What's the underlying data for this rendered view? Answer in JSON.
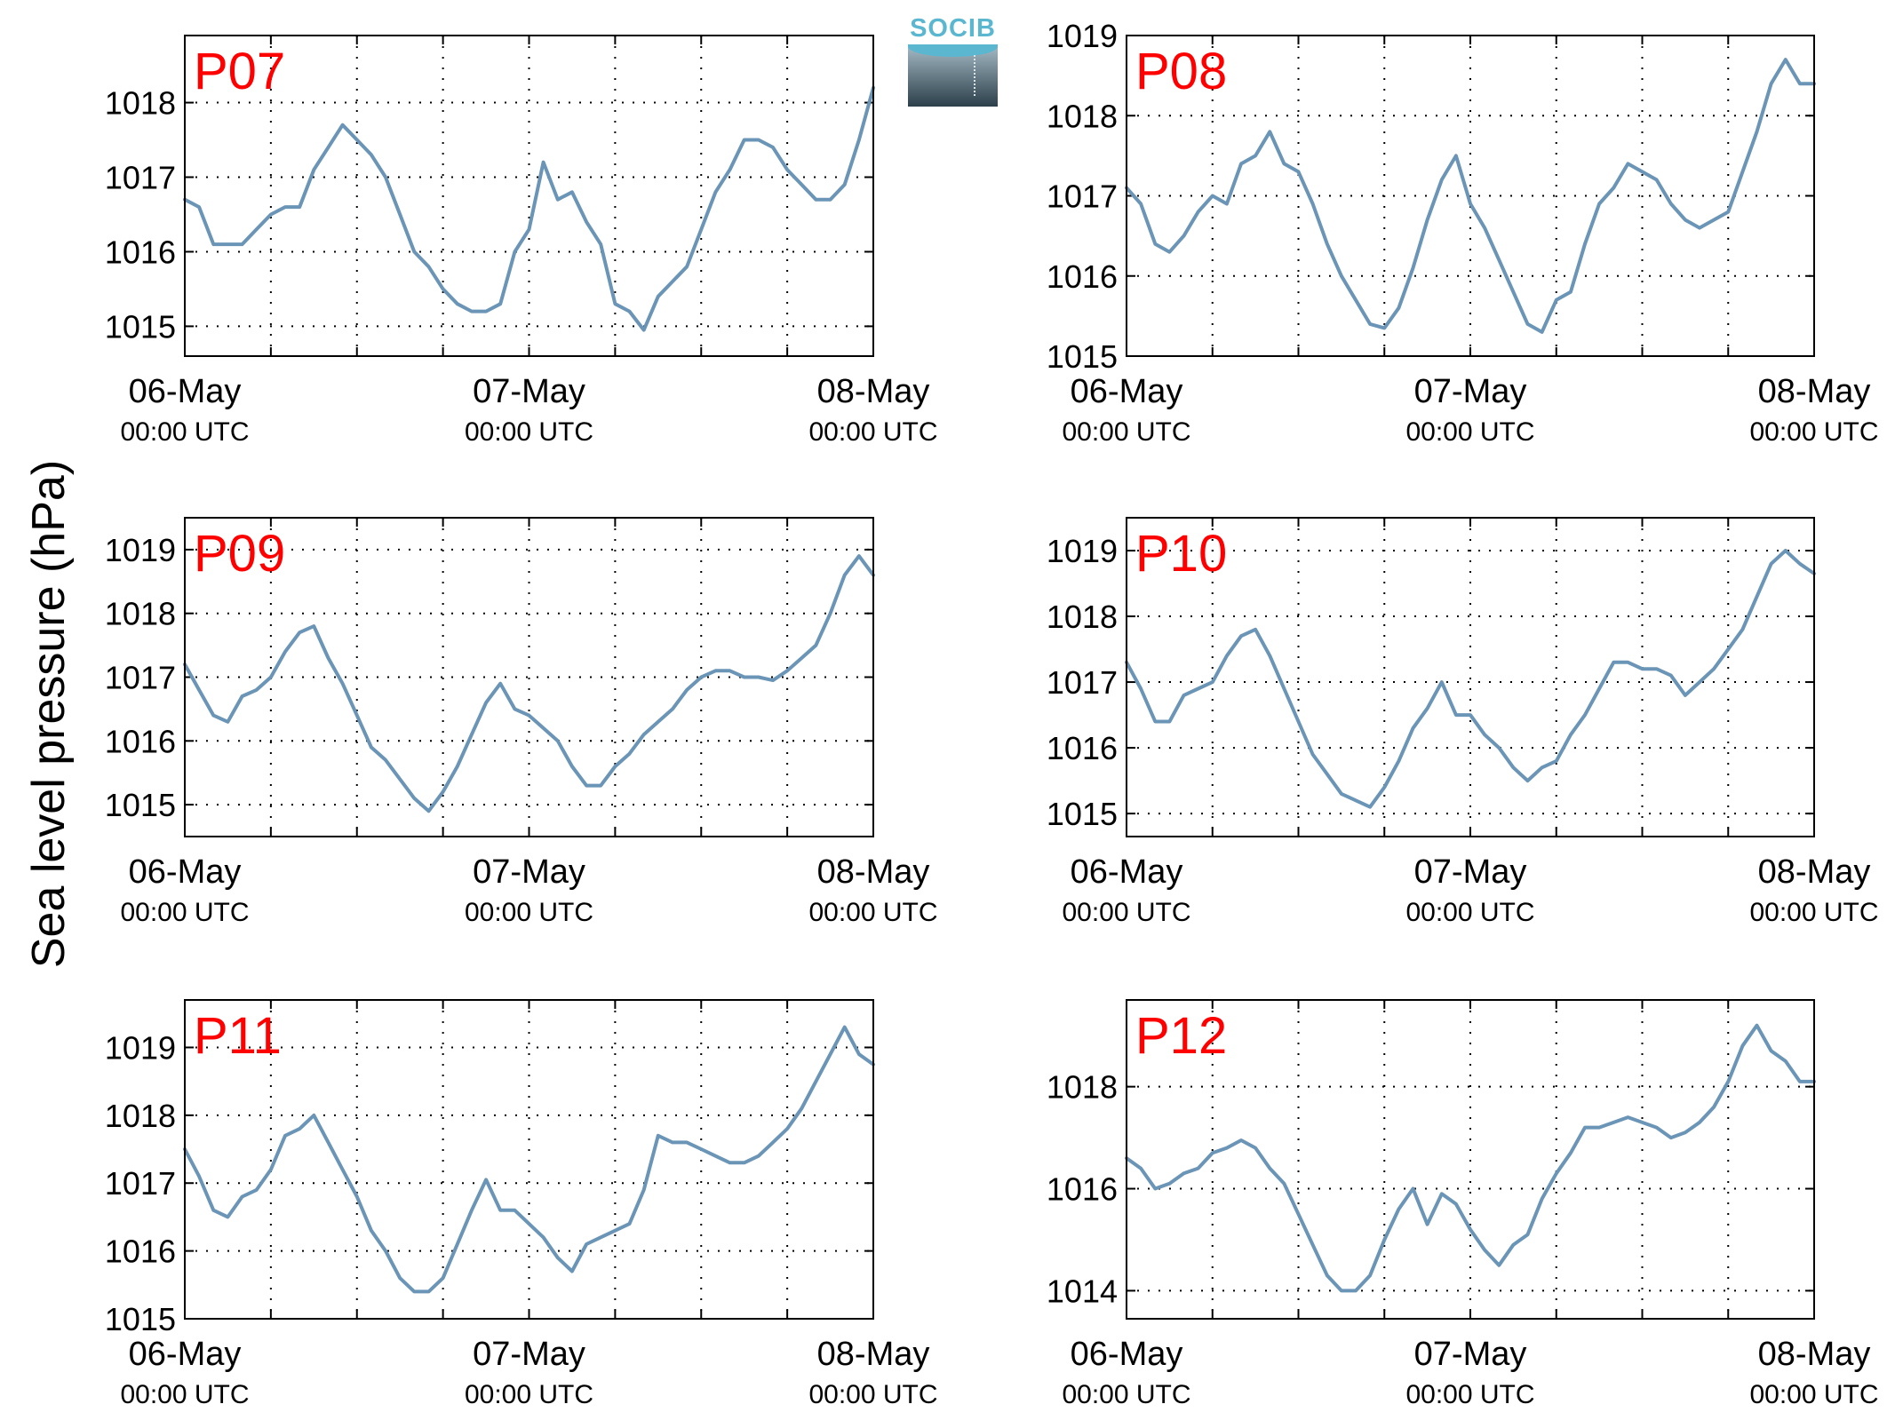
{
  "figure": {
    "ylabel": "Sea level pressure (hPa)",
    "logo_text": "SOCIB"
  },
  "colors": {
    "line": "#6b95b6",
    "panel_label": "#ff0000",
    "grid": "#000000"
  },
  "chart_data": [
    {
      "type": "line",
      "title": "P07",
      "x_range": [
        "2016-05-06 00:00",
        "2016-05-08 00:00"
      ],
      "x_ticks": [
        {
          "major": "06-May",
          "minor": "00:00 UTC"
        },
        {
          "major": "07-May",
          "minor": "00:00 UTC"
        },
        {
          "major": "08-May",
          "minor": "00:00 UTC"
        }
      ],
      "ylim": [
        1014.6,
        1018.9
      ],
      "y_ticks": [
        1015,
        1016,
        1017,
        1018
      ],
      "grid": true,
      "series": [
        {
          "x_hours": [
            0,
            1,
            2,
            3,
            4,
            5,
            6,
            7,
            8,
            9,
            10,
            11,
            12,
            13,
            14,
            15,
            16,
            17,
            18,
            19,
            20,
            21,
            22,
            23,
            24,
            25,
            26,
            27,
            28,
            29,
            30,
            31,
            32,
            33,
            34,
            35,
            36,
            37,
            38,
            39,
            40,
            41,
            42,
            43,
            44,
            45,
            46,
            47,
            48
          ],
          "values": [
            1016.7,
            1016.6,
            1016.1,
            1016.1,
            1016.1,
            1016.3,
            1016.5,
            1016.6,
            1016.6,
            1017.1,
            1017.4,
            1017.7,
            1017.5,
            1017.3,
            1017.0,
            1016.5,
            1016.0,
            1015.8,
            1015.5,
            1015.3,
            1015.2,
            1015.2,
            1015.3,
            1016.0,
            1016.3,
            1017.2,
            1016.7,
            1016.8,
            1016.4,
            1016.1,
            1015.3,
            1015.2,
            1014.95,
            1015.4,
            1015.6,
            1015.8,
            1016.3,
            1016.8,
            1017.1,
            1017.5,
            1017.5,
            1017.4,
            1017.1,
            1016.9,
            1016.7,
            1016.7,
            1016.9,
            1017.5,
            1018.2
          ]
        }
      ]
    },
    {
      "type": "line",
      "title": "P08",
      "x_range": [
        "2016-05-06 00:00",
        "2016-05-08 00:00"
      ],
      "x_ticks": [
        {
          "major": "06-May",
          "minor": "00:00 UTC"
        },
        {
          "major": "07-May",
          "minor": "00:00 UTC"
        },
        {
          "major": "08-May",
          "minor": "00:00 UTC"
        }
      ],
      "ylim": [
        1015,
        1019
      ],
      "y_ticks": [
        1015,
        1016,
        1017,
        1018,
        1019
      ],
      "grid": true,
      "series": [
        {
          "x_hours": [
            0,
            1,
            2,
            3,
            4,
            5,
            6,
            7,
            8,
            9,
            10,
            11,
            12,
            13,
            14,
            15,
            16,
            17,
            18,
            19,
            20,
            21,
            22,
            23,
            24,
            25,
            26,
            27,
            28,
            29,
            30,
            31,
            32,
            33,
            34,
            35,
            36,
            37,
            38,
            39,
            40,
            41,
            42,
            43,
            44,
            45,
            46,
            47,
            48
          ],
          "values": [
            1017.1,
            1016.9,
            1016.4,
            1016.3,
            1016.5,
            1016.8,
            1017.0,
            1016.9,
            1017.4,
            1017.5,
            1017.8,
            1017.4,
            1017.3,
            1016.9,
            1016.4,
            1016.0,
            1015.7,
            1015.4,
            1015.35,
            1015.6,
            1016.1,
            1016.7,
            1017.2,
            1017.5,
            1016.9,
            1016.6,
            1016.2,
            1015.8,
            1015.4,
            1015.3,
            1015.7,
            1015.8,
            1016.4,
            1016.9,
            1017.1,
            1017.4,
            1017.3,
            1017.2,
            1016.9,
            1016.7,
            1016.6,
            1016.7,
            1016.8,
            1017.3,
            1017.8,
            1018.4,
            1018.7,
            1018.4,
            1018.4
          ]
        }
      ]
    },
    {
      "type": "line",
      "title": "P09",
      "x_range": [
        "2016-05-06 00:00",
        "2016-05-08 00:00"
      ],
      "x_ticks": [
        {
          "major": "06-May",
          "minor": "00:00 UTC"
        },
        {
          "major": "07-May",
          "minor": "00:00 UTC"
        },
        {
          "major": "08-May",
          "minor": "00:00 UTC"
        }
      ],
      "ylim": [
        1014.5,
        1019.5
      ],
      "y_ticks": [
        1015,
        1016,
        1017,
        1018,
        1019
      ],
      "grid": true,
      "series": [
        {
          "x_hours": [
            0,
            1,
            2,
            3,
            4,
            5,
            6,
            7,
            8,
            9,
            10,
            11,
            12,
            13,
            14,
            15,
            16,
            17,
            18,
            19,
            20,
            21,
            22,
            23,
            24,
            25,
            26,
            27,
            28,
            29,
            30,
            31,
            32,
            33,
            34,
            35,
            36,
            37,
            38,
            39,
            40,
            41,
            42,
            43,
            44,
            45,
            46,
            47,
            48
          ],
          "values": [
            1017.2,
            1016.8,
            1016.4,
            1016.3,
            1016.7,
            1016.8,
            1017.0,
            1017.4,
            1017.7,
            1017.8,
            1017.3,
            1016.9,
            1016.4,
            1015.9,
            1015.7,
            1015.4,
            1015.1,
            1014.9,
            1015.2,
            1015.6,
            1016.1,
            1016.6,
            1016.9,
            1016.5,
            1016.4,
            1016.2,
            1016.0,
            1015.6,
            1015.3,
            1015.3,
            1015.6,
            1015.8,
            1016.1,
            1016.3,
            1016.5,
            1016.8,
            1017.0,
            1017.1,
            1017.1,
            1017.0,
            1017.0,
            1016.95,
            1017.1,
            1017.3,
            1017.5,
            1018.0,
            1018.6,
            1018.9,
            1018.6
          ]
        }
      ]
    },
    {
      "type": "line",
      "title": "P10",
      "x_range": [
        "2016-05-06 00:00",
        "2016-05-08 00:00"
      ],
      "x_ticks": [
        {
          "major": "06-May",
          "minor": "00:00 UTC"
        },
        {
          "major": "07-May",
          "minor": "00:00 UTC"
        },
        {
          "major": "08-May",
          "minor": "00:00 UTC"
        }
      ],
      "ylim": [
        1014.65,
        1019.5
      ],
      "y_ticks": [
        1015,
        1016,
        1017,
        1018,
        1019
      ],
      "grid": true,
      "series": [
        {
          "x_hours": [
            0,
            1,
            2,
            3,
            4,
            5,
            6,
            7,
            8,
            9,
            10,
            11,
            12,
            13,
            14,
            15,
            16,
            17,
            18,
            19,
            20,
            21,
            22,
            23,
            24,
            25,
            26,
            27,
            28,
            29,
            30,
            31,
            32,
            33,
            34,
            35,
            36,
            37,
            38,
            39,
            40,
            41,
            42,
            43,
            44,
            45,
            46,
            47,
            48
          ],
          "values": [
            1017.3,
            1016.9,
            1016.4,
            1016.4,
            1016.8,
            1016.9,
            1017.0,
            1017.4,
            1017.7,
            1017.8,
            1017.4,
            1016.9,
            1016.4,
            1015.9,
            1015.6,
            1015.3,
            1015.2,
            1015.1,
            1015.4,
            1015.8,
            1016.3,
            1016.6,
            1017.0,
            1016.5,
            1016.5,
            1016.2,
            1016.0,
            1015.7,
            1015.5,
            1015.7,
            1015.8,
            1016.2,
            1016.5,
            1016.9,
            1017.3,
            1017.3,
            1017.2,
            1017.2,
            1017.1,
            1016.8,
            1017.0,
            1017.2,
            1017.5,
            1017.8,
            1018.3,
            1018.8,
            1019.0,
            1018.8,
            1018.65
          ]
        }
      ]
    },
    {
      "type": "line",
      "title": "P11",
      "x_range": [
        "2016-05-06 00:00",
        "2016-05-08 00:00"
      ],
      "x_ticks": [
        {
          "major": "06-May",
          "minor": "00:00 UTC"
        },
        {
          "major": "07-May",
          "minor": "00:00 UTC"
        },
        {
          "major": "08-May",
          "minor": "00:00 UTC"
        }
      ],
      "ylim": [
        1015,
        1019.7
      ],
      "y_ticks": [
        1015,
        1016,
        1017,
        1018,
        1019
      ],
      "grid": true,
      "series": [
        {
          "x_hours": [
            0,
            1,
            2,
            3,
            4,
            5,
            6,
            7,
            8,
            9,
            10,
            11,
            12,
            13,
            14,
            15,
            16,
            17,
            18,
            19,
            20,
            21,
            22,
            23,
            24,
            25,
            26,
            27,
            28,
            29,
            30,
            31,
            32,
            33,
            34,
            35,
            36,
            37,
            38,
            39,
            40,
            41,
            42,
            43,
            44,
            45,
            46,
            47,
            48
          ],
          "values": [
            1017.5,
            1017.1,
            1016.6,
            1016.5,
            1016.8,
            1016.9,
            1017.2,
            1017.7,
            1017.8,
            1018.0,
            1017.6,
            1017.2,
            1016.8,
            1016.3,
            1016.0,
            1015.6,
            1015.4,
            1015.4,
            1015.6,
            1016.1,
            1016.6,
            1017.05,
            1016.6,
            1016.6,
            1016.4,
            1016.2,
            1015.9,
            1015.7,
            1016.1,
            1016.2,
            1016.3,
            1016.4,
            1016.9,
            1017.7,
            1017.6,
            1017.6,
            1017.5,
            1017.4,
            1017.3,
            1017.3,
            1017.4,
            1017.6,
            1017.8,
            1018.1,
            1018.5,
            1018.9,
            1019.3,
            1018.9,
            1018.75
          ]
        }
      ]
    },
    {
      "type": "line",
      "title": "P12",
      "x_range": [
        "2016-05-06 00:00",
        "2016-05-08 00:00"
      ],
      "x_ticks": [
        {
          "major": "06-May",
          "minor": "00:00 UTC"
        },
        {
          "major": "07-May",
          "minor": "00:00 UTC"
        },
        {
          "major": "08-May",
          "minor": "00:00 UTC"
        }
      ],
      "ylim": [
        1013.45,
        1019.7
      ],
      "y_ticks": [
        1014,
        1016,
        1018
      ],
      "grid": true,
      "series": [
        {
          "x_hours": [
            0,
            1,
            2,
            3,
            4,
            5,
            6,
            7,
            8,
            9,
            10,
            11,
            12,
            13,
            14,
            15,
            16,
            17,
            18,
            19,
            20,
            21,
            22,
            23,
            24,
            25,
            26,
            27,
            28,
            29,
            30,
            31,
            32,
            33,
            34,
            35,
            36,
            37,
            38,
            39,
            40,
            41,
            42,
            43,
            44,
            45,
            46,
            47,
            48
          ],
          "values": [
            1016.6,
            1016.4,
            1016.0,
            1016.1,
            1016.3,
            1016.4,
            1016.7,
            1016.8,
            1016.95,
            1016.8,
            1016.4,
            1016.1,
            1015.5,
            1014.9,
            1014.3,
            1014.0,
            1014.0,
            1014.3,
            1015.0,
            1015.6,
            1016.0,
            1015.3,
            1015.9,
            1015.7,
            1015.2,
            1014.8,
            1014.5,
            1014.9,
            1015.1,
            1015.8,
            1016.3,
            1016.7,
            1017.2,
            1017.2,
            1017.3,
            1017.4,
            1017.3,
            1017.2,
            1017.0,
            1017.1,
            1017.3,
            1017.6,
            1018.1,
            1018.8,
            1019.2,
            1018.7,
            1018.5,
            1018.1,
            1018.1
          ]
        }
      ]
    }
  ]
}
